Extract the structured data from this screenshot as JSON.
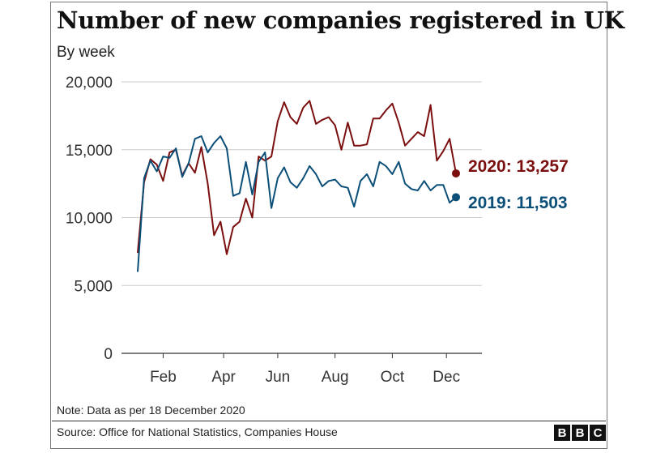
{
  "header": {
    "title": "Number of new companies registered in UK",
    "subtitle": "By week"
  },
  "footer": {
    "note": "Note: Data as per 18 December 2020",
    "source": "Source: Office for National Statistics, Companies House",
    "logo_letters": [
      "B",
      "B",
      "C"
    ]
  },
  "chart_data": {
    "type": "line",
    "title": "Number of new companies registered in UK",
    "subtitle": "By week",
    "xlabel": "",
    "ylabel": "",
    "x_tick_labels": [
      "Feb",
      "Apr",
      "Jun",
      "Aug",
      "Oct",
      "Dec"
    ],
    "y_ticks": [
      0,
      5000,
      10000,
      15000,
      20000
    ],
    "y_tick_labels": [
      "0",
      "5,000",
      "10,000",
      "15,000",
      "20,000"
    ],
    "ylim": [
      0,
      20000
    ],
    "xlim": [
      1,
      52
    ],
    "grid": "horizontal",
    "series": [
      {
        "name": "2020",
        "color": "#7b0f0f",
        "end_label": "2020: 13,257",
        "x": [
          1,
          2,
          3,
          4,
          5,
          6,
          7,
          8,
          9,
          10,
          11,
          12,
          13,
          14,
          15,
          16,
          17,
          18,
          19,
          20,
          21,
          22,
          23,
          24,
          25,
          26,
          27,
          28,
          29,
          30,
          31,
          32,
          33,
          34,
          35,
          36,
          37,
          38,
          39,
          40,
          41,
          42,
          43,
          44,
          45,
          46,
          47,
          48,
          49,
          50,
          51
        ],
        "values": [
          7400,
          12600,
          14300,
          13900,
          12700,
          14800,
          15000,
          13100,
          14000,
          13300,
          15200,
          12500,
          8700,
          9700,
          7300,
          9300,
          9700,
          11400,
          10000,
          14500,
          14200,
          14500,
          17100,
          18500,
          17400,
          16900,
          18100,
          18600,
          16900,
          17200,
          17400,
          16800,
          15000,
          17000,
          15300,
          15300,
          15400,
          17300,
          17300,
          17900,
          18400,
          17000,
          15300,
          15800,
          16300,
          16000,
          18300,
          14200,
          14900,
          15800,
          13257
        ]
      },
      {
        "name": "2019",
        "color": "#0b4f78",
        "end_label": "2019: 11,503",
        "x": [
          1,
          2,
          3,
          4,
          5,
          6,
          7,
          8,
          9,
          10,
          11,
          12,
          13,
          14,
          15,
          16,
          17,
          18,
          19,
          20,
          21,
          22,
          23,
          24,
          25,
          26,
          27,
          28,
          29,
          30,
          31,
          32,
          33,
          34,
          35,
          36,
          37,
          38,
          39,
          40,
          41,
          42,
          43,
          44,
          45,
          46,
          47,
          48,
          49,
          50,
          51
        ],
        "values": [
          6000,
          12900,
          14200,
          13400,
          14500,
          14400,
          15100,
          13000,
          14000,
          15800,
          16000,
          14800,
          15500,
          16000,
          15100,
          11600,
          11800,
          14100,
          11700,
          14100,
          14800,
          10700,
          12900,
          13700,
          12600,
          12200,
          12900,
          13800,
          13200,
          12300,
          12700,
          12800,
          12300,
          12200,
          10800,
          12700,
          13200,
          12300,
          14100,
          13800,
          13200,
          14100,
          12500,
          12100,
          12000,
          12700,
          12000,
          12400,
          12400,
          11100,
          11503
        ]
      }
    ]
  }
}
